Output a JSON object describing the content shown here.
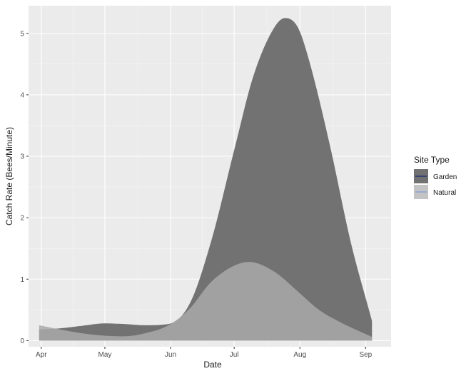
{
  "chart_data": {
    "type": "area",
    "xlabel": "Date",
    "ylabel": "Catch Rate (Bees/Minute)",
    "x_ticks": [
      "Apr",
      "May",
      "Jun",
      "Jul",
      "Aug",
      "Sep"
    ],
    "x_tick_dates": [
      "2019-04-01",
      "2019-05-01",
      "2019-06-01",
      "2019-07-01",
      "2019-08-01",
      "2019-09-01"
    ],
    "xlim": [
      "2019-03-26",
      "2019-09-13"
    ],
    "y_ticks": [
      0,
      1,
      2,
      3,
      4,
      5
    ],
    "ylim": [
      -0.1,
      5.45
    ],
    "grid": true,
    "legend": {
      "title": "Site Type",
      "position": "right",
      "entries": [
        {
          "name": "Garden",
          "fill": "#727272",
          "line": "#1f2f70"
        },
        {
          "name": "Natural",
          "fill": "#c3c3c3",
          "line": "#8aa0d8"
        }
      ]
    },
    "series": [
      {
        "name": "Garden",
        "fill": "#727272",
        "x": [
          "2019-03-31",
          "2019-04-10",
          "2019-04-20",
          "2019-05-01",
          "2019-05-10",
          "2019-05-20",
          "2019-05-31",
          "2019-06-10",
          "2019-06-20",
          "2019-07-01",
          "2019-07-10",
          "2019-07-20",
          "2019-07-25",
          "2019-07-31",
          "2019-08-05",
          "2019-08-15",
          "2019-08-25",
          "2019-09-04"
        ],
        "values": [
          0.18,
          0.2,
          0.24,
          0.28,
          0.27,
          0.25,
          0.27,
          0.6,
          1.6,
          3.1,
          4.3,
          5.1,
          5.25,
          5.1,
          4.6,
          3.2,
          1.6,
          0.32
        ]
      },
      {
        "name": "Natural",
        "fill": "#a9a9a9",
        "x": [
          "2019-03-31",
          "2019-04-10",
          "2019-04-20",
          "2019-05-01",
          "2019-05-10",
          "2019-05-20",
          "2019-05-31",
          "2019-06-10",
          "2019-06-20",
          "2019-07-01",
          "2019-07-08",
          "2019-07-20",
          "2019-07-31",
          "2019-08-10",
          "2019-08-20",
          "2019-09-04"
        ],
        "values": [
          0.25,
          0.18,
          0.12,
          0.08,
          0.07,
          0.12,
          0.25,
          0.52,
          0.95,
          1.22,
          1.28,
          1.12,
          0.8,
          0.5,
          0.3,
          0.06
        ]
      }
    ]
  }
}
